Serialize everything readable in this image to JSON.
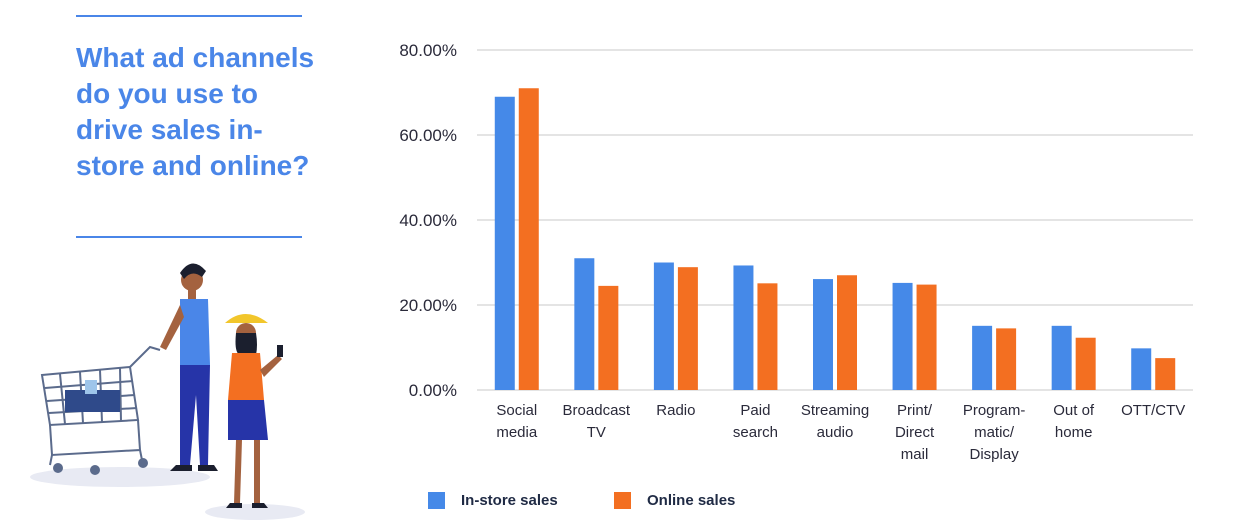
{
  "headline": {
    "text": "What ad channels do you use to drive sales in-store and online?",
    "color": "#4a86e8",
    "rule_color": "#4a86e8"
  },
  "illustration": {
    "subject": "shopper-pushing-cart-and-woman-with-phone"
  },
  "colors": {
    "in_store": "#4589e8",
    "online": "#f36f21",
    "grid": "#c8c8c8",
    "axis_text": "#2a2a3a"
  },
  "chart_data": {
    "type": "bar",
    "categories": [
      [
        "Social",
        "media"
      ],
      [
        "Broadcast",
        "TV"
      ],
      [
        "Radio"
      ],
      [
        "Paid",
        "search"
      ],
      [
        "Streaming",
        "audio"
      ],
      [
        "Print/",
        "Direct",
        "mail"
      ],
      [
        "Program-",
        "matic/",
        "Display"
      ],
      [
        "Out of",
        "home"
      ],
      [
        "OTT/CTV"
      ]
    ],
    "series": [
      {
        "name": "In-store sales",
        "values": [
          0.69,
          0.31,
          0.3,
          0.293,
          0.261,
          0.252,
          0.151,
          0.151,
          0.098
        ]
      },
      {
        "name": "Online sales",
        "values": [
          0.71,
          0.245,
          0.289,
          0.251,
          0.27,
          0.248,
          0.145,
          0.123,
          0.075
        ]
      }
    ],
    "ylim": [
      0,
      0.8
    ],
    "yticks": [
      "0.00%",
      "20.00%",
      "40.00%",
      "60.00%",
      "80.00%"
    ],
    "ytick_values": [
      0,
      0.2,
      0.4,
      0.6,
      0.8
    ],
    "grid": true,
    "legend_position": "bottom-left"
  }
}
